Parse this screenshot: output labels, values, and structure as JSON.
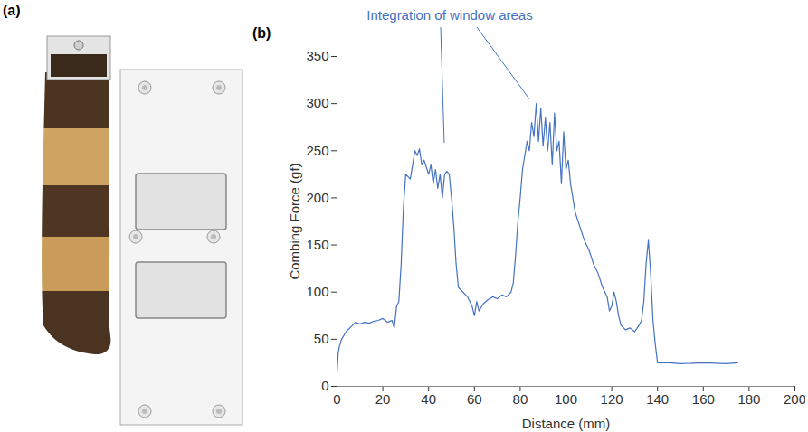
{
  "figure_a": {
    "label": "(a)"
  },
  "chart_data": {
    "type": "line",
    "panel_label": "(b)",
    "x_label": "Distance (mm)",
    "y_label": "Combing Force (gf)",
    "color": "#4472c4",
    "xlim": [
      0,
      200
    ],
    "xticks": [
      0,
      20,
      40,
      60,
      80,
      100,
      120,
      140,
      160,
      180,
      200
    ],
    "ylim": [
      0,
      350
    ],
    "yticks": [
      0,
      50,
      100,
      150,
      200,
      250,
      300,
      350
    ],
    "grid": false,
    "annotation": {
      "text": "Integration of window areas",
      "points": [
        {
          "x": 47,
          "y": 258
        },
        {
          "x": 84,
          "y": 305
        }
      ]
    },
    "x": [
      0,
      0.5,
      1,
      2,
      4,
      6,
      8,
      10,
      12,
      14,
      16,
      18,
      20,
      22,
      24,
      25,
      26,
      27,
      28,
      29,
      30,
      32,
      34,
      35,
      36,
      37,
      38,
      40,
      41,
      42,
      43,
      44,
      45,
      46,
      47,
      48,
      49,
      50,
      51,
      52,
      53,
      55,
      57,
      59,
      60,
      61,
      62,
      64,
      66,
      68,
      70,
      72,
      74,
      76,
      77,
      78,
      79,
      80,
      81,
      82,
      83,
      84,
      85,
      86,
      87,
      88,
      89,
      90,
      91,
      92,
      93,
      94,
      95,
      96,
      97,
      98,
      99,
      100,
      101,
      102,
      103,
      104,
      106,
      108,
      110,
      112,
      114,
      116,
      118,
      119,
      120,
      121,
      122,
      123,
      124,
      126,
      128,
      130,
      132,
      133,
      134,
      135,
      136,
      137,
      138,
      139,
      140,
      145,
      150,
      160,
      170,
      175
    ],
    "values": [
      15,
      35,
      42,
      50,
      58,
      63,
      68,
      66,
      68,
      67,
      69,
      70,
      72,
      68,
      70,
      62,
      85,
      90,
      130,
      190,
      225,
      220,
      250,
      245,
      252,
      235,
      240,
      225,
      235,
      215,
      230,
      210,
      225,
      200,
      225,
      228,
      225,
      200,
      170,
      130,
      105,
      100,
      95,
      85,
      75,
      90,
      80,
      88,
      92,
      95,
      93,
      97,
      95,
      100,
      110,
      140,
      175,
      200,
      230,
      245,
      260,
      250,
      280,
      265,
      300,
      260,
      295,
      255,
      285,
      250,
      280,
      235,
      290,
      250,
      260,
      215,
      270,
      230,
      240,
      215,
      200,
      185,
      170,
      155,
      145,
      130,
      120,
      105,
      95,
      80,
      85,
      100,
      90,
      75,
      65,
      60,
      62,
      58,
      65,
      70,
      90,
      130,
      155,
      120,
      70,
      45,
      25,
      25,
      24,
      25,
      24,
      25
    ]
  }
}
